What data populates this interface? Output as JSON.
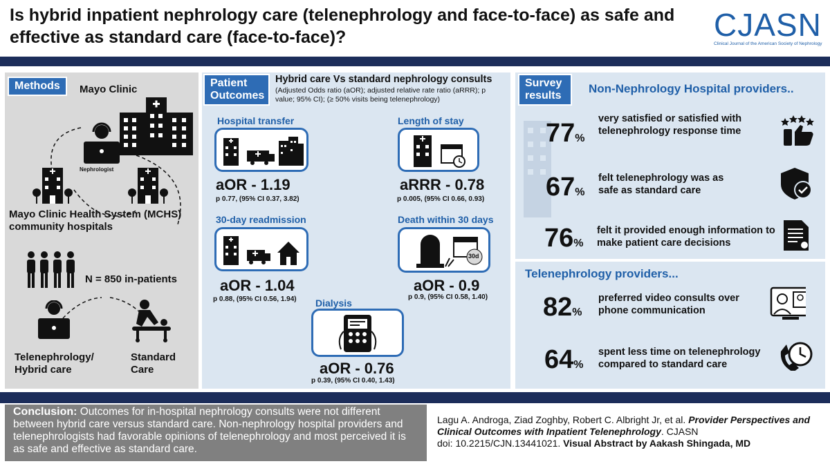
{
  "header": {
    "title": "Is hybrid  inpatient nephrology care (telenephrology and face-to-face) as safe and effective as standard care (face-to-face)?",
    "logo": "CJASN",
    "logo_subtitle": "Clinical Journal of the American Society of Nephrology"
  },
  "methods": {
    "tag": "Methods",
    "mayo_clinic": "Mayo Clinic",
    "nephrologist": "Nephrologist",
    "mchs": "Mayo Clinic Health System (MCHS) community hospitals",
    "n_inpatients": "N = 850 in-patients",
    "hybrid": "Telenephrology/ Hybrid care",
    "standard": "Standard Care"
  },
  "outcomes": {
    "tag": "Patient Outcomes",
    "heading": "Hybrid care Vs standard nephrology consults",
    "subheading": "(Adjusted Odds ratio (aOR); adjusted relative rate ratio (aRRR); p value; 95% CI); (≥ 50%  visits being telenephrology)",
    "items": [
      {
        "label": "Hospital transfer",
        "value": "aOR - 1.19",
        "stats": "p 0.77, (95%  CI 0.37, 3.82)"
      },
      {
        "label": "Length of stay",
        "value": "aRRR - 0.78",
        "stats": "p  0.005, (95%  CI 0.66, 0.93)"
      },
      {
        "label": "30-day readmission",
        "value": "aOR - 1.04",
        "stats": "p 0.88, (95%  CI 0.56, 1.94)"
      },
      {
        "label": "Death within 30 days",
        "value": "aOR - 0.9",
        "stats": "p 0.9, (95%  CI 0.58, 1.40)",
        "badge": "30d"
      },
      {
        "label": "Dialysis",
        "value": "aOR - 0.76",
        "stats": "p 0.39, (95%  CI 0.40, 1.43)"
      }
    ]
  },
  "survey": {
    "tag": "Survey results",
    "non_neph_heading": "Non-Nephrology  Hospital providers..",
    "tele_heading": "Telenephrology  providers...",
    "non_neph": [
      {
        "pct": "77",
        "text": "very satisfied or satisfied with telenephrology response time",
        "icon": "thumbs-up-stars-icon"
      },
      {
        "pct": "67",
        "text": "felt telenephrology was as safe as standard care",
        "icon": "shield-check-icon"
      },
      {
        "pct": "76",
        "text": "felt it provided enough information to make patient care decisions",
        "icon": "document-icon"
      }
    ],
    "tele": [
      {
        "pct": "82",
        "text": "preferred video consults over phone communication",
        "icon": "video-call-icon"
      },
      {
        "pct": "64",
        "text": "spent less time on telenephrology compared to standard care",
        "icon": "clock-phone-icon"
      }
    ],
    "pct_sign": "%"
  },
  "conclusion": {
    "label": "Conclusion:",
    "text": " Outcomes for in-hospital nephrology consults were not different between hybrid care versus standard care. Non-nephrology hospital providers and telenephrologists had favorable opinions of telenephrology and most perceived it is as safe and effective as standard care."
  },
  "citation": {
    "authors": "Lagu A. Androga, Ziad Zoghby, Robert C. Albright Jr, et al. ",
    "article": "Provider Perspectives and Clinical Outcomes with Inpatient Telenephrology",
    "journal": ". CJASN",
    "doi": "doi: 10.2215/CJN.13441021. ",
    "credit": "Visual Abstract by Aakash Shingada, MD"
  },
  "colors": {
    "navy": "#1c2d5a",
    "blue": "#2e6cb5",
    "panel_blue": "#dbe6f1",
    "panel_gray": "#d9d9d9"
  }
}
